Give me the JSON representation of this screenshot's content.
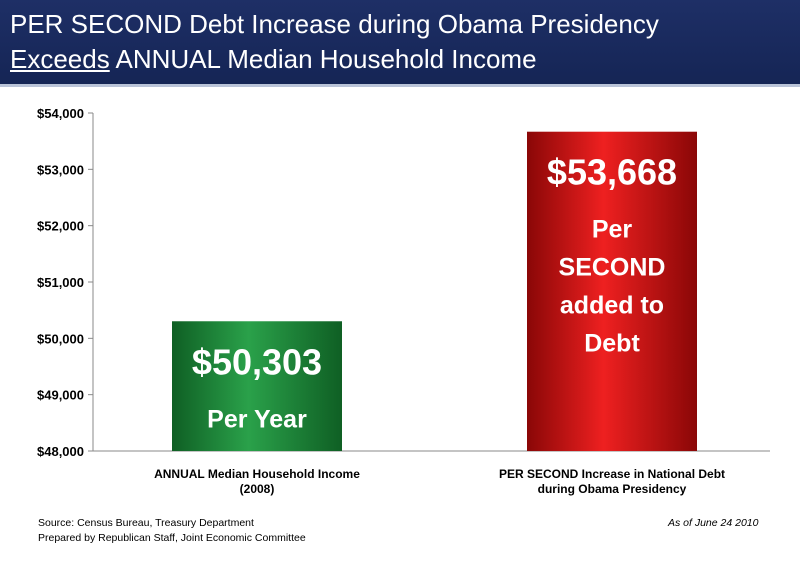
{
  "header": {
    "line1": "PER SECOND Debt Increase during Obama Presidency",
    "line2_emph": "Exceeds",
    "line2_rest": " ANNUAL Median Household Income"
  },
  "chart_data": {
    "type": "bar",
    "categories": [
      [
        "ANNUAL Median Household Income",
        "(2008)"
      ],
      [
        "PER SECOND Increase in National Debt",
        "during Obama Presidency"
      ]
    ],
    "values": [
      50303,
      53668
    ],
    "value_labels": [
      "$50,303",
      "$53,668"
    ],
    "bar_notes": [
      [
        "Per Year"
      ],
      [
        "Per",
        "SECOND",
        "added to",
        "Debt"
      ]
    ],
    "colors": [
      "#1f8a3a",
      "#d41414"
    ],
    "ylim": [
      48000,
      54000
    ],
    "yticks": [
      48000,
      49000,
      50000,
      51000,
      52000,
      53000,
      54000
    ],
    "ytick_labels": [
      "$48,000",
      "$49,000",
      "$50,000",
      "$51,000",
      "$52,000",
      "$53,000",
      "$54,000"
    ],
    "grid": false
  },
  "footer": {
    "source_line1": "Source:  Census Bureau, Treasury Department",
    "source_line2": "Prepared by Republican Staff, Joint Economic Committee",
    "as_of": "As of June 24 2010"
  }
}
